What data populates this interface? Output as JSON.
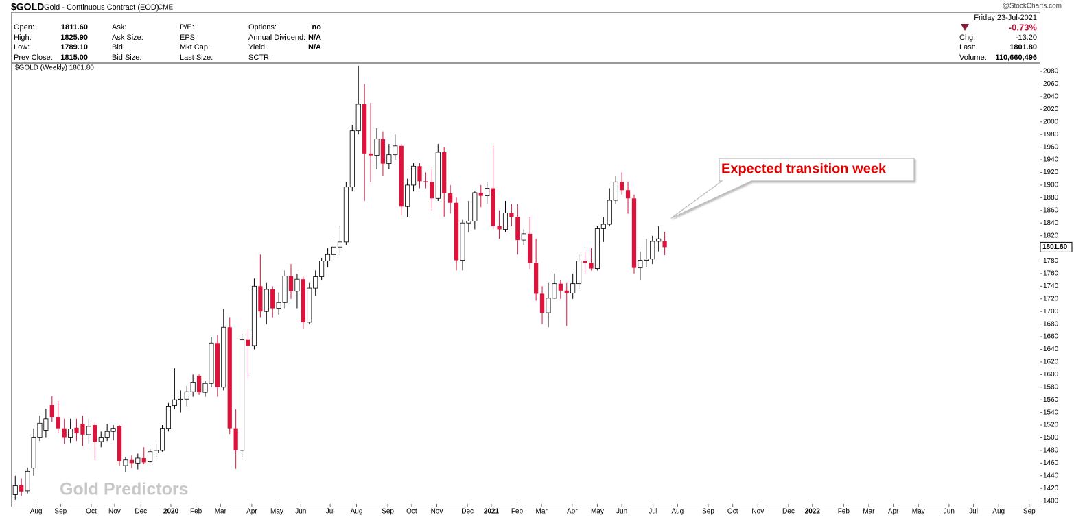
{
  "header": {
    "symbol": "$GOLD",
    "name": "Gold - Continuous Contract (EOD)",
    "exchange": "CME",
    "watermark": "@StockCharts.com"
  },
  "quote": {
    "columns": [
      [
        {
          "label": "Open:",
          "value": "1811.60"
        },
        {
          "label": "High:",
          "value": "1825.90"
        },
        {
          "label": "Low:",
          "value": "1789.10"
        },
        {
          "label": "Prev Close:",
          "value": "1815.00"
        }
      ],
      [
        {
          "label": "Ask:"
        },
        {
          "label": "Ask Size:"
        },
        {
          "label": "Bid:"
        },
        {
          "label": "Bid Size:"
        }
      ],
      [
        {
          "label": "P/E:"
        },
        {
          "label": "EPS:"
        },
        {
          "label": "Mkt Cap:"
        },
        {
          "label": "Last Size:"
        }
      ],
      [
        {
          "label": "Options:",
          "value": "no"
        },
        {
          "label": "Annual Dividend:",
          "value": "N/A"
        },
        {
          "label": "Yield:",
          "value": "N/A"
        },
        {
          "label": "SCTR:"
        }
      ]
    ],
    "date": "Friday  23-Jul-2021",
    "change_pct": "-0.73%",
    "stats": [
      {
        "label": "Chg:",
        "value": "-13.20"
      },
      {
        "label": "Last:",
        "value": "1801.80"
      },
      {
        "label": "Volume:",
        "value": "110,660,496"
      }
    ]
  },
  "chart_data": {
    "type": "candlestick",
    "annotation": "Expected transition week",
    "watermark": "Gold Predictors",
    "last_label": "1801.80",
    "up_color": "#ffffff",
    "down_color": "#dc143c",
    "grid": false,
    "ylim": [
      1392,
      2092
    ],
    "yticks": [
      1400,
      1420,
      1440,
      1460,
      1480,
      1500,
      1520,
      1540,
      1560,
      1580,
      1600,
      1620,
      1640,
      1660,
      1680,
      1700,
      1720,
      1740,
      1760,
      1780,
      1800,
      1820,
      1840,
      1860,
      1880,
      1900,
      1920,
      1940,
      1960,
      1980,
      2000,
      2020,
      2040,
      2060,
      2080
    ],
    "xlim": [
      -0.7,
      167.2
    ],
    "xticks": [
      {
        "value": 3.4,
        "label": "Aug"
      },
      {
        "value": 7.4,
        "label": "Sep"
      },
      {
        "value": 12.4,
        "label": "Oct"
      },
      {
        "value": 16.2,
        "label": "Nov"
      },
      {
        "value": 20.5,
        "label": "Dec"
      },
      {
        "value": 25.4,
        "label": "2020"
      },
      {
        "value": 29.5,
        "label": "Feb"
      },
      {
        "value": 33.5,
        "label": "Mar"
      },
      {
        "value": 38.6,
        "label": "Apr"
      },
      {
        "value": 42.7,
        "label": "May"
      },
      {
        "value": 46.6,
        "label": "Jun"
      },
      {
        "value": 51.4,
        "label": "Jul"
      },
      {
        "value": 55.7,
        "label": "Aug"
      },
      {
        "value": 60.8,
        "label": "Sep"
      },
      {
        "value": 64.7,
        "label": "Oct"
      },
      {
        "value": 68.8,
        "label": "Nov"
      },
      {
        "value": 73.8,
        "label": "Dec"
      },
      {
        "value": 77.7,
        "label": "2021"
      },
      {
        "value": 81.9,
        "label": "Feb"
      },
      {
        "value": 85.9,
        "label": "Mar"
      },
      {
        "value": 90.9,
        "label": "Apr"
      },
      {
        "value": 95,
        "label": "May"
      },
      {
        "value": 99,
        "label": "Jun"
      },
      {
        "value": 104.1,
        "label": "Jul"
      },
      {
        "value": 108.1,
        "label": "Aug"
      },
      {
        "value": 113.1,
        "label": "Sep"
      },
      {
        "value": 117.1,
        "label": "Oct"
      },
      {
        "value": 121.2,
        "label": "Nov"
      },
      {
        "value": 126.2,
        "label": "Dec"
      },
      {
        "value": 130.1,
        "label": "2022"
      },
      {
        "value": 135.2,
        "label": "Feb"
      },
      {
        "value": 139.3,
        "label": "Mar"
      },
      {
        "value": 143.3,
        "label": "Apr"
      },
      {
        "value": 147.4,
        "label": "May"
      },
      {
        "value": 152.4,
        "label": "Jun"
      },
      {
        "value": 156.4,
        "label": "Jul"
      },
      {
        "value": 160.5,
        "label": "Aug"
      },
      {
        "value": 165.5,
        "label": "Sep"
      }
    ],
    "series": [
      {
        "name": "$GOLD (Weekly) 1801.80",
        "open": [
          1410,
          1425,
          1416,
          1452,
          1500,
          1512,
          1552,
          1533,
          1515,
          1500,
          1516,
          1522,
          1505,
          1520,
          1494,
          1500,
          1510,
          1518,
          1456,
          1465,
          1460,
          1468,
          1462,
          1476,
          1480,
          1515,
          1551,
          1560,
          1561,
          1573,
          1598,
          1572,
          1586,
          1650,
          1580,
          1675,
          1515,
          1480,
          1655,
          1646,
          1740,
          1700,
          1735,
          1705,
          1714,
          1756,
          1732,
          1751,
          1683,
          1737,
          1755,
          1780,
          1790,
          1802,
          1810,
          1897,
          1986,
          2028,
          1950,
          1947,
          1973,
          1934,
          1948,
          1962,
          1866,
          1900,
          1930,
          1906,
          1905,
          1879,
          1952,
          1887,
          1872,
          1781,
          1840,
          1843,
          1888,
          1883,
          1895,
          1835,
          1830,
          1856,
          1850,
          1813,
          1823,
          1777,
          1728,
          1698,
          1721,
          1744,
          1733,
          1729,
          1744,
          1780,
          1777,
          1768,
          1831,
          1838,
          1876,
          1905,
          1892,
          1879,
          1769,
          1781,
          1783,
          1811,
          1811.6
        ],
        "high": [
          1440,
          1436,
          1453,
          1515,
          1535,
          1546,
          1566,
          1558,
          1530,
          1530,
          1530,
          1535,
          1530,
          1524,
          1510,
          1522,
          1520,
          1520,
          1470,
          1472,
          1475,
          1485,
          1482,
          1490,
          1520,
          1555,
          1610,
          1575,
          1582,
          1600,
          1600,
          1590,
          1660,
          1663,
          1704,
          1690,
          1545,
          1665,
          1670,
          1752,
          1790,
          1745,
          1740,
          1730,
          1765,
          1775,
          1760,
          1755,
          1745,
          1765,
          1785,
          1800,
          1818,
          1835,
          1905,
          1995,
          2089,
          2060,
          2030,
          1990,
          1985,
          1965,
          1980,
          1965,
          1910,
          1935,
          1935,
          1920,
          1925,
          1965,
          1960,
          1900,
          1880,
          1845,
          1875,
          1890,
          1900,
          1905,
          1962,
          1860,
          1875,
          1870,
          1870,
          1830,
          1850,
          1815,
          1740,
          1745,
          1760,
          1750,
          1745,
          1760,
          1790,
          1795,
          1800,
          1835,
          1850,
          1895,
          1915,
          1920,
          1905,
          1885,
          1795,
          1815,
          1820,
          1835,
          1825.9
        ],
        "low": [
          1402,
          1408,
          1412,
          1440,
          1495,
          1500,
          1525,
          1508,
          1490,
          1492,
          1495,
          1487,
          1490,
          1465,
          1485,
          1495,
          1496,
          1455,
          1446,
          1452,
          1450,
          1458,
          1460,
          1470,
          1478,
          1510,
          1545,
          1540,
          1550,
          1565,
          1568,
          1565,
          1580,
          1565,
          1575,
          1506,
          1451,
          1470,
          1595,
          1640,
          1690,
          1680,
          1690,
          1695,
          1705,
          1720,
          1705,
          1672,
          1680,
          1725,
          1750,
          1770,
          1785,
          1790,
          1805,
          1890,
          1980,
          1875,
          1905,
          1925,
          1915,
          1925,
          1940,
          1852,
          1850,
          1890,
          1895,
          1895,
          1860,
          1875,
          1850,
          1855,
          1765,
          1765,
          1825,
          1830,
          1865,
          1870,
          1830,
          1815,
          1825,
          1835,
          1790,
          1805,
          1767,
          1717,
          1680,
          1675,
          1720,
          1720,
          1677,
          1720,
          1735,
          1760,
          1765,
          1765,
          1810,
          1835,
          1870,
          1885,
          1855,
          1760,
          1750,
          1770,
          1775,
          1795,
          1789.1
        ],
        "close": [
          1424,
          1415,
          1447,
          1500,
          1523,
          1530,
          1533,
          1515,
          1500,
          1514,
          1507,
          1505,
          1518,
          1494,
          1500,
          1510,
          1515,
          1463,
          1465,
          1460,
          1468,
          1461,
          1478,
          1480,
          1515,
          1550,
          1560,
          1561,
          1573,
          1588,
          1572,
          1586,
          1650,
          1580,
          1675,
          1515,
          1480,
          1655,
          1646,
          1740,
          1700,
          1735,
          1705,
          1714,
          1756,
          1732,
          1751,
          1683,
          1737,
          1755,
          1780,
          1790,
          1802,
          1810,
          1897,
          1986,
          2028,
          1950,
          1947,
          1973,
          1934,
          1948,
          1962,
          1866,
          1900,
          1930,
          1906,
          1905,
          1879,
          1952,
          1887,
          1872,
          1781,
          1840,
          1843,
          1888,
          1883,
          1895,
          1835,
          1830,
          1856,
          1850,
          1813,
          1823,
          1777,
          1728,
          1698,
          1721,
          1744,
          1733,
          1729,
          1744,
          1780,
          1777,
          1768,
          1831,
          1838,
          1876,
          1905,
          1892,
          1879,
          1769,
          1781,
          1783,
          1811,
          1815,
          1801.8
        ]
      }
    ]
  }
}
